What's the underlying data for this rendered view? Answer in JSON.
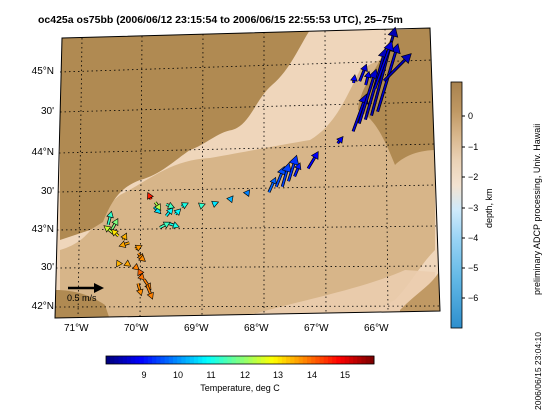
{
  "title": "oc425a os75bb (2006/06/12 23:15:54 to 2006/06/15 22:55:53 UTC), 25–75m",
  "map": {
    "lon_ticks": [
      "71°W",
      "70°W",
      "69°W",
      "68°W",
      "67°W",
      "66°W"
    ],
    "lat_ticks": [
      "45°N",
      "30'",
      "44°N",
      "30'",
      "43°N",
      "30'",
      "42°N"
    ],
    "scale_label": "0.5 m/s",
    "land_color": "#b08a52",
    "shelf_color": "#d7b589",
    "deep_color": "#efd6bb"
  },
  "depth_colorbar": {
    "label": "depth, km",
    "ticks": [
      "0",
      "−1",
      "−2",
      "−3",
      "−4",
      "−5",
      "−6"
    ]
  },
  "temp_colorbar": {
    "label": "Temperature, deg C",
    "ticks": [
      "9",
      "10",
      "11",
      "12",
      "13",
      "14",
      "15"
    ],
    "range": [
      8,
      16
    ]
  },
  "side_note": "preliminary ADCP processing,   Univ. Hawaii",
  "timestamp": "2006/06/15 23:04:10",
  "vectors_lonlat": [
    {
      "lon": -70.55,
      "lat": 43.1,
      "u": 0.05,
      "v": 0.2,
      "temp": 11.4
    },
    {
      "lon": -70.5,
      "lat": 43.0,
      "u": -0.2,
      "v": 0.15,
      "temp": 12.6
    },
    {
      "lon": -70.25,
      "lat": 42.85,
      "u": -0.15,
      "v": -0.1,
      "temp": 13.7
    },
    {
      "lon": -70.05,
      "lat": 42.35,
      "u": 0.1,
      "v": -0.2,
      "temp": 14.0
    },
    {
      "lon": -66.3,
      "lat": 44.5,
      "u": 0.2,
      "v": 0.6,
      "temp": 8.8
    }
  ]
}
